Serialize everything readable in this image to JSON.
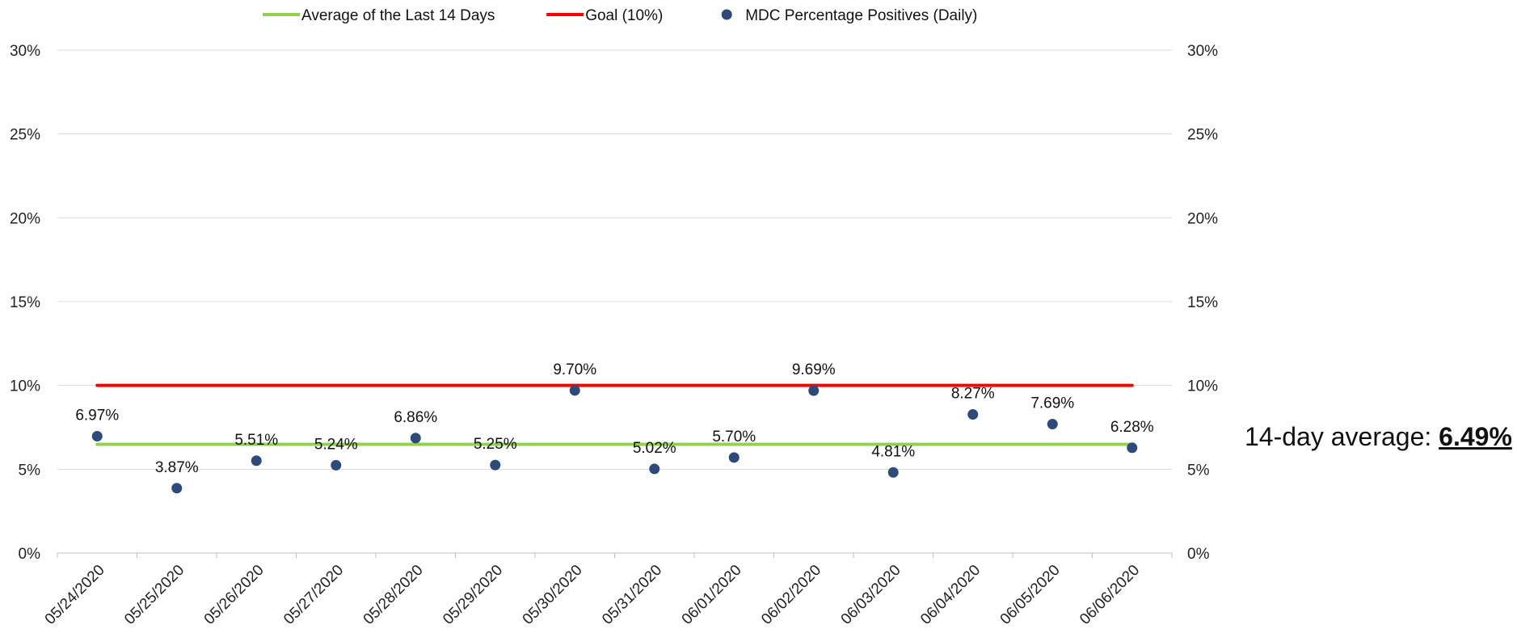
{
  "chart_data": {
    "type": "scatter",
    "categories": [
      "05/24/2020",
      "05/25/2020",
      "05/26/2020",
      "05/27/2020",
      "05/28/2020",
      "05/29/2020",
      "05/30/2020",
      "05/31/2020",
      "06/01/2020",
      "06/02/2020",
      "06/03/2020",
      "06/04/2020",
      "06/05/2020",
      "06/06/2020"
    ],
    "series": [
      {
        "name": "MDC Percentage Positives (Daily)",
        "type": "scatter",
        "color": "#2e4a7a",
        "values": [
          6.97,
          3.87,
          5.51,
          5.24,
          6.86,
          5.25,
          9.7,
          5.02,
          5.7,
          9.69,
          4.81,
          8.27,
          7.69,
          6.28
        ],
        "labels": [
          "6.97%",
          "3.87%",
          "5.51%",
          "5.24%",
          "6.86%",
          "5.25%",
          "9.70%",
          "5.02%",
          "5.70%",
          "9.69%",
          "4.81%",
          "8.27%",
          "7.69%",
          "6.28%"
        ]
      },
      {
        "name": "Average of the Last 14 Days",
        "type": "line",
        "color": "#92d050",
        "values": [
          6.49,
          6.49,
          6.49,
          6.49,
          6.49,
          6.49,
          6.49,
          6.49,
          6.49,
          6.49,
          6.49,
          6.49,
          6.49,
          6.49
        ]
      },
      {
        "name": "Goal (10%)",
        "type": "line",
        "color": "#ff0000",
        "values": [
          10,
          10,
          10,
          10,
          10,
          10,
          10,
          10,
          10,
          10,
          10,
          10,
          10,
          10
        ]
      }
    ],
    "legend_order": [
      "Average of the Last 14 Days",
      "Goal (10%)",
      "MDC Percentage Positives (Daily)"
    ],
    "ylim": [
      0,
      30
    ],
    "yticks": [
      "0%",
      "5%",
      "10%",
      "15%",
      "20%",
      "25%",
      "30%"
    ],
    "ytick_values": [
      0,
      5,
      10,
      15,
      20,
      25,
      30
    ],
    "secondary_yaxis": true,
    "grid": true,
    "legend_position": "top",
    "title": "",
    "xlabel": "",
    "ylabel": ""
  },
  "summary": {
    "label": "14-day average: ",
    "value": "6.49%"
  }
}
